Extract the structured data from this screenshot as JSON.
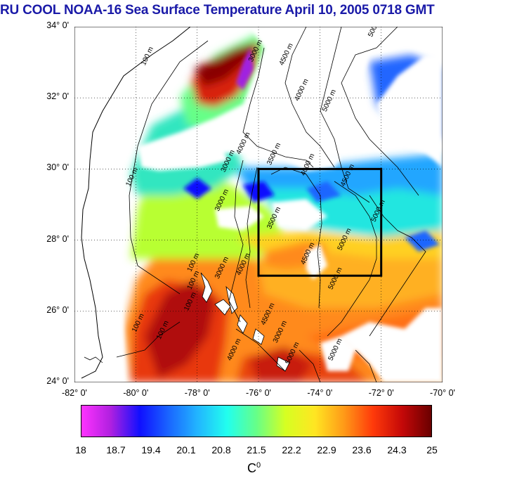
{
  "title": "RU COOL  NOAA-16 Sea Surface Temperature April 10, 2005 0718 GMT",
  "axes": {
    "lat_labels": [
      "34° 0'",
      "32° 0'",
      "30° 0'",
      "28° 0'",
      "26° 0'",
      "24° 0'"
    ],
    "lat_values": [
      34,
      32,
      30,
      28,
      26,
      24
    ],
    "lon_labels": [
      "-82° 0'",
      "-80° 0'",
      "-78° 0'",
      "-76° 0'",
      "-74° 0'",
      "-72° 0'",
      "-70° 0'"
    ],
    "lon_values": [
      -82,
      -80,
      -78,
      -76,
      -74,
      -72,
      -70
    ],
    "lat_range": [
      24,
      34
    ],
    "lon_range": [
      -82,
      -70
    ],
    "grid": "dotted"
  },
  "study_box": {
    "lon_min": -76,
    "lon_max": -72,
    "lat_min": 27,
    "lat_max": 30
  },
  "contours": {
    "labels": [
      {
        "text": "100 m",
        "lon": -79.7,
        "lat": 32.9
      },
      {
        "text": "100 m",
        "lon": -80.2,
        "lat": 29.5
      },
      {
        "text": "100 m",
        "lon": -78.2,
        "lat": 27.1
      },
      {
        "text": "100 m",
        "lon": -78.2,
        "lat": 26.6
      },
      {
        "text": "100 m",
        "lon": -78.3,
        "lat": 26.0
      },
      {
        "text": "100 m",
        "lon": -80.0,
        "lat": 25.4
      },
      {
        "text": "100 m",
        "lon": -79.2,
        "lat": 25.2
      },
      {
        "text": "3000 m",
        "lon": -76.2,
        "lat": 33.0
      },
      {
        "text": "4500 m",
        "lon": -75.2,
        "lat": 32.9
      },
      {
        "text": "4000 m",
        "lon": -74.7,
        "lat": 31.9
      },
      {
        "text": "5000 m",
        "lon": -73.8,
        "lat": 31.6
      },
      {
        "text": "5000 m",
        "lon": -72.3,
        "lat": 33.7
      },
      {
        "text": "4000 m",
        "lon": -76.6,
        "lat": 30.4
      },
      {
        "text": "3000 m",
        "lon": -77.1,
        "lat": 29.9
      },
      {
        "text": "3500 m",
        "lon": -75.6,
        "lat": 30.1
      },
      {
        "text": "4000 m",
        "lon": -74.5,
        "lat": 29.8
      },
      {
        "text": "4500 m",
        "lon": -73.2,
        "lat": 29.5
      },
      {
        "text": "3000 m",
        "lon": -77.3,
        "lat": 28.8
      },
      {
        "text": "3500 m",
        "lon": -75.6,
        "lat": 28.3
      },
      {
        "text": "5000 m",
        "lon": -72.2,
        "lat": 28.5
      },
      {
        "text": "5000 m",
        "lon": -73.3,
        "lat": 27.7
      },
      {
        "text": "4500 m",
        "lon": -74.5,
        "lat": 27.3
      },
      {
        "text": "4000 m",
        "lon": -76.6,
        "lat": 27.0
      },
      {
        "text": "3000 m",
        "lon": -77.3,
        "lat": 26.9
      },
      {
        "text": "5000 m",
        "lon": -73.6,
        "lat": 26.6
      },
      {
        "text": "4500 m",
        "lon": -75.8,
        "lat": 25.6
      },
      {
        "text": "3000 m",
        "lon": -75.4,
        "lat": 25.1
      },
      {
        "text": "4000 m",
        "lon": -76.9,
        "lat": 24.6
      },
      {
        "text": "5000 m",
        "lon": -75.0,
        "lat": 24.5
      },
      {
        "text": "5000 m",
        "lon": -73.6,
        "lat": 24.6
      }
    ]
  },
  "colorbar": {
    "labels": [
      "18",
      "18.7",
      "19.4",
      "20.1",
      "20.8",
      "21.5",
      "22.2",
      "22.9",
      "23.6",
      "24.3",
      "25"
    ],
    "min": 18,
    "max": 25,
    "unit_base": "C",
    "unit_sup": "0",
    "colors": [
      "#ff33ff",
      "#b020e0",
      "#1010ff",
      "#1a66ff",
      "#22b6ff",
      "#22ffee",
      "#66ff88",
      "#d6ff22",
      "#ffe622",
      "#ff9a18",
      "#ff3a0a",
      "#c40808",
      "#6a0000"
    ]
  }
}
